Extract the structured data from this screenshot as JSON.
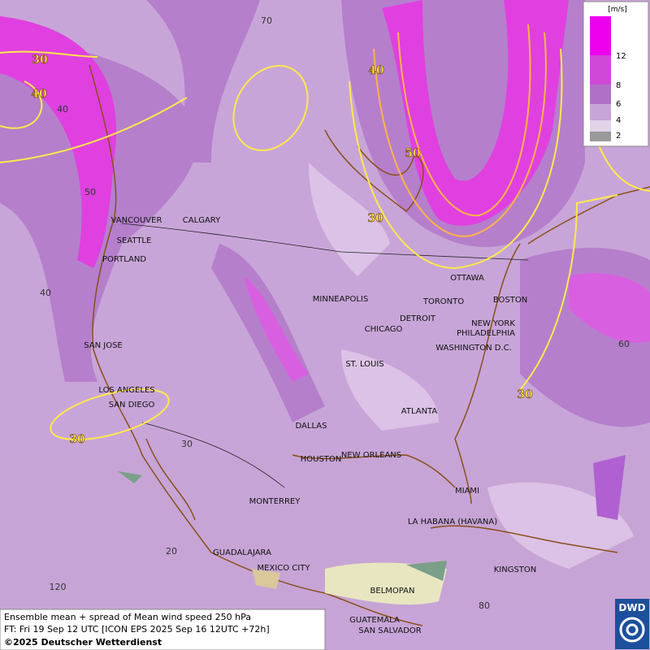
{
  "legend": {
    "unit": "[m/s]",
    "levels": [
      "12",
      "8",
      "6",
      "4",
      "2"
    ]
  },
  "contour_labels": [
    "30",
    "40",
    "40",
    "50",
    "30",
    "30",
    "30"
  ],
  "grid_labels": [
    "70",
    "40",
    "50",
    "40",
    "30",
    "20",
    "120",
    "60",
    "80"
  ],
  "cities": [
    "VANCOUVER",
    "CALGARY",
    "SEATTLE",
    "PORTLAND",
    "MINNEAPOLIS",
    "TORONTO",
    "OTTAWA",
    "BOSTON",
    "DETROIT",
    "CHICAGO",
    "NEW YORK",
    "PHILADELPHIA",
    "WASHINGTON D.C.",
    "SAN JOSE",
    "ST. LOUIS",
    "LOS ANGELES",
    "SAN DIEGO",
    "ATLANTA",
    "DALLAS",
    "HOUSTON",
    "NEW ORLEANS",
    "MIAMI",
    "MONTERREY",
    "LA HABANA (HAVANA)",
    "GUADALAJARA",
    "MEXICO CITY",
    "KINGSTON",
    "BELMOPAN",
    "GUATEMALA",
    "SAN SALVADOR"
  ],
  "footer": {
    "line1": "Ensemble mean + spread of Mean wind speed 250 hPa",
    "line2": "FT: Fri 19 Sep 12 UTC [ICON EPS 2025 Sep 16 12UTC +72h]",
    "line3": "©2025 Deutscher Wetterdienst"
  },
  "logo": "DWD"
}
